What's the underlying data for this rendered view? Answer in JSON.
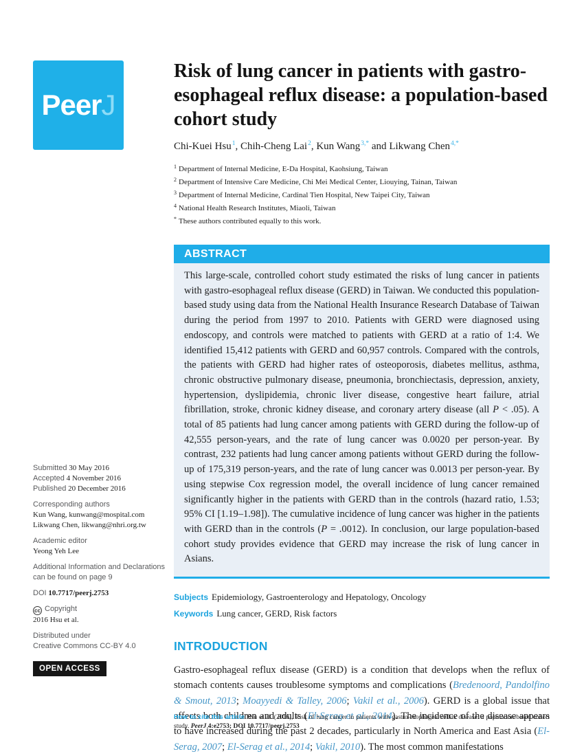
{
  "colors": {
    "accent_cyan": "#1fade8",
    "heading_cyan": "#1ba3de",
    "citation_blue": "#4596c7",
    "abstract_background": "#e9eff6",
    "open_access_background": "#161616"
  },
  "logo": {
    "main": "Peer",
    "j": "J"
  },
  "header": {
    "title": "Risk of lung cancer in patients with gastro-esophageal reflux disease: a population-based cohort study"
  },
  "authors": [
    {
      "name": "Chi-Kuei Hsu",
      "sup": "1",
      "sep": ",  "
    },
    {
      "name": "Chih-Cheng Lai",
      "sup": "2",
      "sep": ",  "
    },
    {
      "name": "Kun Wang",
      "sup": "3,*",
      "sep": "  and  "
    },
    {
      "name": "Likwang Chen",
      "sup": "4,*",
      "sep": ""
    }
  ],
  "affiliations": [
    {
      "sup": "1",
      "text": "Department of Internal Medicine, E-Da Hospital, Kaohsiung, Taiwan"
    },
    {
      "sup": "2",
      "text": "Department of Intensive Care Medicine, Chi Mei Medical Center, Liouying, Tainan, Taiwan"
    },
    {
      "sup": "3",
      "text": "Department of Internal Medicine, Cardinal Tien Hospital, New Taipei City, Taiwan"
    },
    {
      "sup": "4",
      "text": "National Health Research Institutes, Miaoli, Taiwan"
    },
    {
      "sup": "*",
      "text": "These authors contributed equally to this work."
    }
  ],
  "abstract": {
    "heading": "ABSTRACT",
    "segments": [
      "This large-scale, controlled cohort study estimated the risks of lung cancer in patients with gastro-esophageal reflux disease (GERD) in Taiwan. We conducted this population-based study using data from the National Health Insurance Research Database of Taiwan during the period from 1997 to 2010. Patients with GERD were diagnosed using endoscopy, and controls were matched to patients with GERD at a ratio of 1:4. We identified 15,412 patients with GERD and 60,957 controls. Compared with the controls, the patients with GERD had higher rates of osteoporosis, diabetes mellitus, asthma, chronic obstructive pulmonary disease, pneumonia, bronchiectasis, depression, anxiety, hypertension, dyslipidemia, chronic liver disease, congestive heart failure, atrial fibrillation, stroke, chronic kidney disease, and coronary artery disease (all ",
      "P",
      " < .05). A total of 85 patients had lung cancer among patients with GERD during the follow-up of 42,555 person-years, and the rate of lung cancer was 0.0020 per person-year. By contrast, 232 patients had lung cancer among patients without GERD during the follow-up of 175,319 person-years, and the rate of lung cancer was 0.0013 per person-year. By using stepwise Cox regression model, the overall incidence of lung cancer remained significantly higher in the patients with GERD than in the controls (hazard ratio, 1.53; 95% CI [1.19–1.98]). The cumulative incidence of lung cancer was higher in the patients with GERD than in the controls (",
      "P",
      " = .0012). In conclusion, our large population-based cohort study provides evidence that GERD may increase the risk of lung cancer in Asians."
    ]
  },
  "subjects": {
    "label": "Subjects",
    "value": "Epidemiology, Gastroenterology and Hepatology, Oncology"
  },
  "keywords": {
    "label": "Keywords",
    "value": "Lung cancer, GERD, Risk factors"
  },
  "introduction": {
    "heading": "INTRODUCTION",
    "segments": [
      "Gastro-esophageal reflux disease (GERD) is a condition that develops when the reflux of stomach contents causes troublesome symptoms and complications  (",
      "Bredenoord, Pandolfino & Smout, 2013",
      "; ",
      "Moayyedi & Talley, 2006",
      "; ",
      "Vakil et al., 2006",
      "). GERD is a global issue that affects both children and adults (",
      "El-Serag et al., 2014",
      "). The incidence of the disease appears to have increased during the past 2 decades, particularly in North America and East Asia (",
      "El-Serag, 2007",
      "; ",
      "El-Serag et al., 2014",
      "; ",
      "Vakil, 2010",
      "). The most common manifestations"
    ]
  },
  "sidebar": {
    "submitted_label": "Submitted",
    "submitted_value": "30 May 2016",
    "accepted_label": "Accepted",
    "accepted_value": "4 November 2016",
    "published_label": "Published",
    "published_value": "20 December 2016",
    "corresponding_label": "Corresponding authors",
    "corresponding_1": "Kun Wang, kunwang@mospital.com",
    "corresponding_2": "Likwang Chen, likwang@nhri.org.tw",
    "editor_label": "Academic editor",
    "editor_name": "Yeong Yeh Lee",
    "additional_info": "Additional Information and Declarations can be found on page 9",
    "doi_label": "DOI",
    "doi_value": "10.7717/peerj.2753",
    "cc_icon": "cc",
    "copyright_label": "Copyright",
    "copyright_value": "2016 Hsu et al.",
    "license_line1": "Distributed under",
    "license_line2": "Creative Commons CC-BY 4.0",
    "open_access": "OPEN ACCESS"
  },
  "footer": {
    "label": "How to cite this article",
    "text": " Hsu et al. (2016), Risk of lung cancer in patients with gastro-esophageal reflux disease: a population-based cohort study. ",
    "journal": "PeerJ",
    "ref": " 4:e2753; DOI 10.7717/peerj.2753"
  }
}
